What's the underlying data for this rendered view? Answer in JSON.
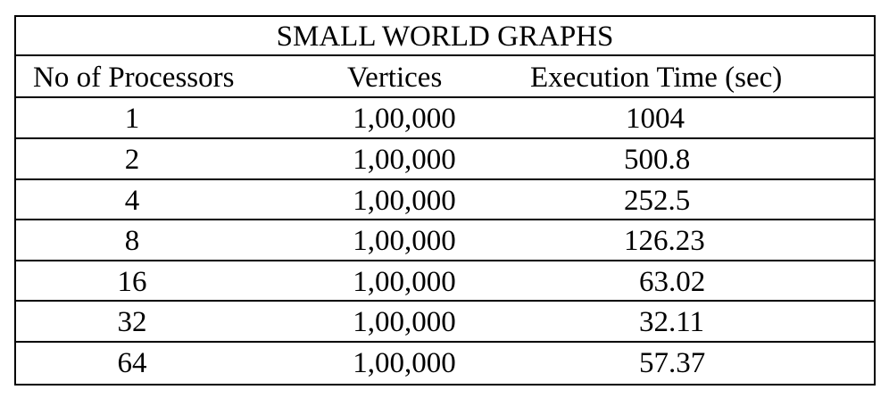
{
  "table": {
    "title": "SMALL WORLD GRAPHS",
    "columns": [
      "No of Processors",
      "Vertices",
      "Execution Time (sec)"
    ],
    "rows": [
      {
        "processors": "1",
        "vertices": "1,00,000",
        "time": "1004"
      },
      {
        "processors": "2",
        "vertices": "1,00,000",
        "time": "500.8"
      },
      {
        "processors": "4",
        "vertices": "1,00,000",
        "time": "252.5"
      },
      {
        "processors": "8",
        "vertices": "1,00,000",
        "time": "126.23"
      },
      {
        "processors": "16",
        "vertices": "1,00,000",
        "time": "63.02"
      },
      {
        "processors": "32",
        "vertices": "1,00,000",
        "time": "32.11"
      },
      {
        "processors": "64",
        "vertices": "1,00,000",
        "time": "57.37"
      }
    ]
  }
}
